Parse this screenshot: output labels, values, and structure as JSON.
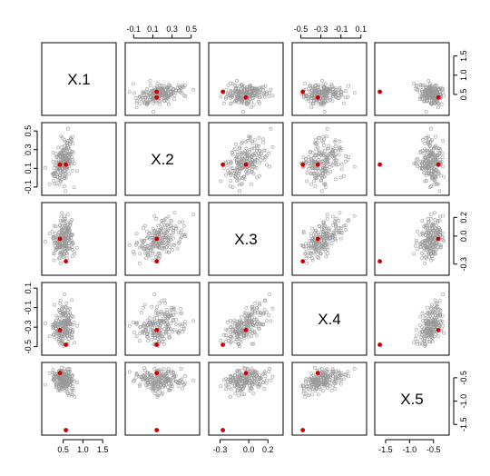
{
  "chart_data": {
    "type": "scatter",
    "layout": "pairs-matrix",
    "title": "",
    "variables": [
      "X.1",
      "X.2",
      "X.3",
      "X.4",
      "X.5"
    ],
    "ranges": {
      "X.1": [
        0.05,
        1.75
      ],
      "X.2": [
        -0.15,
        0.55
      ],
      "X.3": [
        -0.38,
        0.32
      ],
      "X.4": [
        -0.55,
        0.12
      ],
      "X.5": [
        -1.65,
        -0.25
      ]
    },
    "ticks": {
      "X.1": [
        {
          "value": 0.5,
          "label": "0.5"
        },
        {
          "value": 1.0,
          "label": "1.0"
        },
        {
          "value": 1.5,
          "label": "1.5"
        }
      ],
      "X.2": [
        {
          "value": -0.1,
          "label": "-0.1"
        },
        {
          "value": 0.1,
          "label": "0.1"
        },
        {
          "value": 0.3,
          "label": "0.3"
        },
        {
          "value": 0.5,
          "label": "0.5"
        }
      ],
      "X.3": [
        {
          "value": -0.3,
          "label": "-0.3"
        },
        {
          "value": 0.0,
          "label": "0.0"
        },
        {
          "value": 0.2,
          "label": "0.2"
        }
      ],
      "X.4": [
        {
          "value": -0.5,
          "label": "-0.5"
        },
        {
          "value": -0.3,
          "label": "-0.3"
        },
        {
          "value": -0.1,
          "label": "-0.1"
        },
        {
          "value": 0.1,
          "label": "0.1"
        }
      ],
      "X.5": [
        {
          "value": -1.5,
          "label": "-1.5"
        },
        {
          "value": -1.0,
          "label": "-1.0"
        },
        {
          "value": -0.5,
          "label": "-0.5"
        }
      ]
    },
    "cloud": {
      "count": 200,
      "color": "#9a9a9a",
      "means": [
        0.5,
        0.17,
        -0.03,
        -0.27,
        -0.55
      ],
      "sds": [
        0.15,
        0.12,
        0.11,
        0.11,
        0.12
      ],
      "correlations": [
        [
          1.0,
          0.4,
          0.2,
          0.2,
          0.0
        ],
        [
          0.4,
          1.0,
          0.5,
          0.3,
          0.0
        ],
        [
          0.2,
          0.5,
          1.0,
          0.6,
          0.2
        ],
        [
          0.2,
          0.3,
          0.6,
          1.0,
          0.4
        ],
        [
          0.0,
          0.0,
          0.2,
          0.4,
          1.0
        ]
      ]
    },
    "highlighted_points": {
      "color": "#cc0000",
      "points": [
        [
          0.42,
          0.14,
          -0.03,
          -0.33,
          -0.4
        ],
        [
          0.57,
          0.14,
          -0.27,
          -0.48,
          -1.62
        ]
      ]
    },
    "grid": false,
    "legend": "none"
  }
}
